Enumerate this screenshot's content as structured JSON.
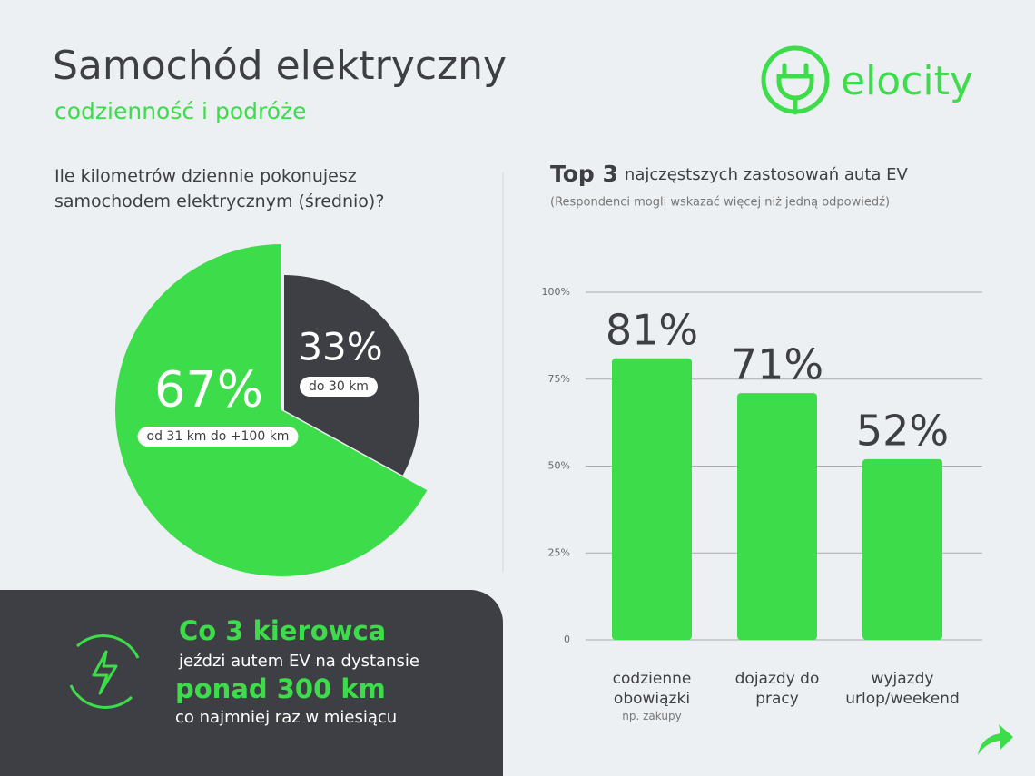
{
  "header": {
    "title": "Samochód elektryczny",
    "subtitle": "codzienność i podróże",
    "logo": "elocity"
  },
  "chart_data": [
    {
      "type": "pie",
      "title": "Ile kilometrów dziennie pokonujesz samochodem elektrycznym (średnio)?",
      "categories": [
        "od 31 km do +100 km",
        "do 30 km"
      ],
      "values": [
        67,
        33
      ],
      "value_labels": [
        "67%",
        "33%"
      ],
      "colors": [
        "#3ddc4a",
        "#3e3f44"
      ]
    },
    {
      "type": "bar",
      "title_lead": "Top 3",
      "title": "najczęstszych zastosowań auta EV",
      "subtitle": "(Respondenci mogli wskazać więcej niż jedną odpowiedź)",
      "categories": [
        "codzienne obowiązki",
        "dojazdy do pracy",
        "wyjazdy urlop/weekend"
      ],
      "note": "np. zakupy",
      "values": [
        81,
        71,
        52
      ],
      "value_labels": [
        "81%",
        "71%",
        "52%"
      ],
      "color": "#3ddc4a",
      "ylim": [
        0,
        100
      ],
      "yticks": [
        0,
        {
          "value": 25,
          "label": "25%"
        },
        {
          "value": 50,
          "label": "50%"
        },
        {
          "value": 75,
          "label": "75%"
        },
        {
          "value": 100,
          "label": "100%"
        }
      ],
      "grid": true
    }
  ],
  "callout": {
    "lines": [
      "Co 3 kierowca",
      "jeździ autem EV na dystansie",
      "ponad 300 km",
      "co najmniej raz w miesiącu"
    ]
  }
}
